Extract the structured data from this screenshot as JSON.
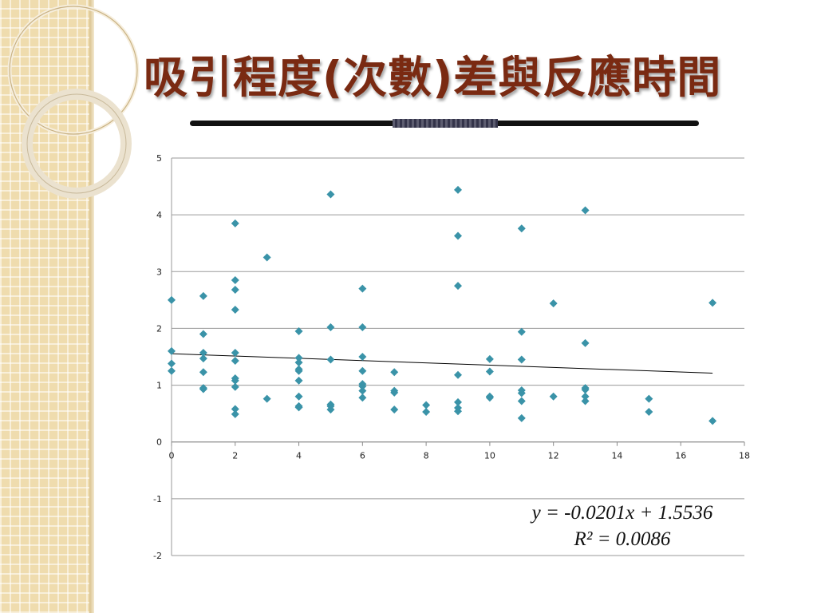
{
  "slide": {
    "title": "吸引程度(次數)差與反應時間",
    "colors": {
      "title": "#7a2a12",
      "marker": "#3a93a8",
      "sidebar": "#efdcae"
    }
  },
  "chart_data": {
    "type": "scatter",
    "title": "",
    "xlabel": "",
    "ylabel": "",
    "xlim": [
      0,
      18
    ],
    "ylim": [
      -2,
      5
    ],
    "xticks": [
      0,
      2,
      4,
      6,
      8,
      10,
      12,
      14,
      16,
      18
    ],
    "yticks": [
      5,
      4,
      3,
      2,
      1,
      0,
      -1,
      -2
    ],
    "grid": "horizontal",
    "points": [
      [
        0,
        2.5
      ],
      [
        0,
        1.6
      ],
      [
        0,
        1.38
      ],
      [
        0,
        1.25
      ],
      [
        1,
        2.57
      ],
      [
        1,
        1.9
      ],
      [
        1,
        1.57
      ],
      [
        1,
        1.47
      ],
      [
        1,
        1.23
      ],
      [
        1,
        0.95
      ],
      [
        1,
        0.93
      ],
      [
        2,
        3.85
      ],
      [
        2,
        2.85
      ],
      [
        2,
        2.68
      ],
      [
        2,
        2.33
      ],
      [
        2,
        1.57
      ],
      [
        2,
        1.43
      ],
      [
        2,
        1.12
      ],
      [
        2,
        1.08
      ],
      [
        2,
        0.97
      ],
      [
        2,
        0.58
      ],
      [
        2,
        0.49
      ],
      [
        3,
        3.25
      ],
      [
        3,
        0.76
      ],
      [
        4,
        1.95
      ],
      [
        4,
        1.48
      ],
      [
        4,
        1.4
      ],
      [
        4,
        1.28
      ],
      [
        4,
        1.25
      ],
      [
        4,
        1.08
      ],
      [
        4,
        0.8
      ],
      [
        4,
        0.63
      ],
      [
        4,
        0.61
      ],
      [
        5,
        4.36
      ],
      [
        5,
        2.02
      ],
      [
        5,
        1.45
      ],
      [
        5,
        0.66
      ],
      [
        5,
        0.63
      ],
      [
        5,
        0.57
      ],
      [
        6,
        2.7
      ],
      [
        6,
        2.02
      ],
      [
        6,
        1.5
      ],
      [
        6,
        1.25
      ],
      [
        6,
        1.02
      ],
      [
        6,
        0.98
      ],
      [
        6,
        0.9
      ],
      [
        6,
        0.78
      ],
      [
        7,
        1.23
      ],
      [
        7,
        0.9
      ],
      [
        7,
        0.87
      ],
      [
        7,
        0.57
      ],
      [
        8,
        0.65
      ],
      [
        8,
        0.53
      ],
      [
        9,
        4.44
      ],
      [
        9,
        3.63
      ],
      [
        9,
        2.75
      ],
      [
        9,
        1.18
      ],
      [
        9,
        0.7
      ],
      [
        9,
        0.6
      ],
      [
        9,
        0.54
      ],
      [
        10,
        1.46
      ],
      [
        10,
        1.24
      ],
      [
        10,
        0.8
      ],
      [
        10,
        0.78
      ],
      [
        11,
        3.76
      ],
      [
        11,
        1.94
      ],
      [
        11,
        1.45
      ],
      [
        11,
        0.91
      ],
      [
        11,
        0.86
      ],
      [
        11,
        0.72
      ],
      [
        11,
        0.42
      ],
      [
        12,
        2.44
      ],
      [
        12,
        0.8
      ],
      [
        13,
        4.08
      ],
      [
        13,
        1.74
      ],
      [
        13,
        0.95
      ],
      [
        13,
        0.92
      ],
      [
        13,
        0.8
      ],
      [
        13,
        0.72
      ],
      [
        15,
        0.76
      ],
      [
        15,
        0.53
      ],
      [
        17,
        2.45
      ],
      [
        17,
        0.37
      ]
    ],
    "trendline": {
      "slope": -0.0201,
      "intercept": 1.5536,
      "x_range": [
        0,
        17
      ]
    },
    "equation": "y = -0.0201x + 1.5536",
    "r_squared": "R² = 0.0086"
  }
}
